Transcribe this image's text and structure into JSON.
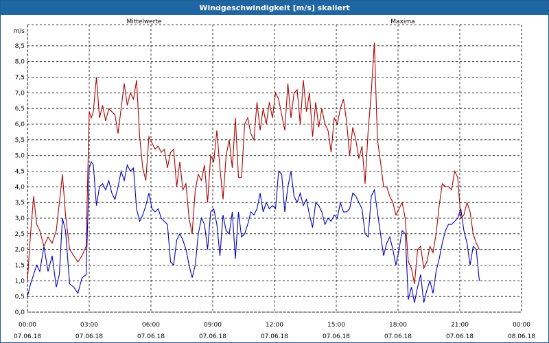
{
  "window": {
    "title": "Windgeschwindigkeit [m/s] skaliert"
  },
  "chart_data": {
    "type": "line",
    "ylabel": "m/s",
    "ylim": [
      0,
      9
    ],
    "y_ticks": [
      "0,0",
      "0,5",
      "1,0",
      "1,5",
      "2,0",
      "2,5",
      "3,0",
      "3,5",
      "4,0",
      "4,5",
      "5,0",
      "5,5",
      "6,0",
      "6,5",
      "7,0",
      "7,5",
      "8,0",
      "8,5"
    ],
    "x_ticks": [
      {
        "time": "00:00",
        "date": "07.06.18"
      },
      {
        "time": "03:00",
        "date": "07.06.18"
      },
      {
        "time": "06:00",
        "date": "07.06.18"
      },
      {
        "time": "09:00",
        "date": "07.06.18"
      },
      {
        "time": "12:00",
        "date": "07.06.18"
      },
      {
        "time": "15:00",
        "date": "07.06.18"
      },
      {
        "time": "18:00",
        "date": "07.06.18"
      },
      {
        "time": "21:00",
        "date": "07.06.18"
      },
      {
        "time": "00:00",
        "date": "08.06.18"
      }
    ],
    "x_range_hours": [
      0,
      24
    ],
    "grid": true,
    "series": [
      {
        "name": "Mittelwerte",
        "color": "#0000c0",
        "legend_position": "top-left",
        "points": [
          [
            0,
            0.5
          ],
          [
            0.15,
            0.9
          ],
          [
            0.3,
            1.2
          ],
          [
            0.45,
            1.5
          ],
          [
            0.6,
            1.3
          ],
          [
            0.8,
            2.1
          ],
          [
            1.0,
            1.3
          ],
          [
            1.2,
            1.8
          ],
          [
            1.4,
            0.8
          ],
          [
            1.55,
            1.2
          ],
          [
            1.7,
            3.0
          ],
          [
            1.85,
            2.6
          ],
          [
            2.05,
            0.9
          ],
          [
            2.25,
            0.8
          ],
          [
            2.45,
            0.6
          ],
          [
            2.65,
            1.1
          ],
          [
            2.85,
            1.2
          ],
          [
            3.0,
            4.6
          ],
          [
            3.1,
            4.8
          ],
          [
            3.2,
            4.7
          ],
          [
            3.35,
            3.4
          ],
          [
            3.5,
            4.0
          ],
          [
            3.65,
            4.1
          ],
          [
            3.8,
            3.9
          ],
          [
            3.95,
            4.2
          ],
          [
            4.1,
            3.8
          ],
          [
            4.25,
            3.6
          ],
          [
            4.4,
            4.0
          ],
          [
            4.55,
            4.5
          ],
          [
            4.7,
            4.2
          ],
          [
            4.85,
            4.7
          ],
          [
            5.0,
            4.5
          ],
          [
            5.15,
            4.6
          ],
          [
            5.3,
            3.3
          ],
          [
            5.45,
            2.9
          ],
          [
            5.6,
            3.1
          ],
          [
            5.75,
            3.4
          ],
          [
            5.9,
            3.8
          ],
          [
            6.05,
            3.3
          ],
          [
            6.2,
            3.2
          ],
          [
            6.35,
            3.3
          ],
          [
            6.5,
            3.0
          ],
          [
            6.65,
            2.9
          ],
          [
            6.8,
            2.8
          ],
          [
            6.95,
            1.6
          ],
          [
            7.1,
            1.5
          ],
          [
            7.25,
            2.3
          ],
          [
            7.4,
            2.5
          ],
          [
            7.55,
            2.3
          ],
          [
            7.7,
            2.0
          ],
          [
            7.85,
            1.5
          ],
          [
            8.0,
            1.1
          ],
          [
            8.15,
            1.5
          ],
          [
            8.3,
            2.5
          ],
          [
            8.45,
            3.0
          ],
          [
            8.6,
            2.8
          ],
          [
            8.75,
            2.0
          ],
          [
            8.9,
            3.2
          ],
          [
            9.05,
            3.3
          ],
          [
            9.2,
            2.8
          ],
          [
            9.35,
            1.8
          ],
          [
            9.5,
            3.1
          ],
          [
            9.65,
            2.6
          ],
          [
            9.8,
            2.5
          ],
          [
            9.95,
            3.2
          ],
          [
            10.1,
            1.7
          ],
          [
            10.25,
            3.2
          ],
          [
            10.4,
            2.4
          ],
          [
            10.55,
            2.5
          ],
          [
            10.7,
            2.8
          ],
          [
            10.85,
            3.2
          ],
          [
            11.0,
            3.1
          ],
          [
            11.15,
            3.3
          ],
          [
            11.3,
            3.8
          ],
          [
            11.45,
            3.2
          ],
          [
            11.6,
            3.5
          ],
          [
            11.75,
            3.3
          ],
          [
            11.9,
            3.4
          ],
          [
            12.05,
            3.3
          ],
          [
            12.2,
            4.5
          ],
          [
            12.35,
            4.4
          ],
          [
            12.5,
            3.2
          ],
          [
            12.65,
            4.0
          ],
          [
            12.8,
            4.5
          ],
          [
            12.95,
            3.7
          ],
          [
            13.1,
            3.5
          ],
          [
            13.25,
            3.8
          ],
          [
            13.4,
            3.4
          ],
          [
            13.55,
            3.6
          ],
          [
            13.7,
            3.1
          ],
          [
            13.85,
            2.7
          ],
          [
            14.0,
            3.5
          ],
          [
            14.15,
            3.4
          ],
          [
            14.3,
            3.2
          ],
          [
            14.45,
            2.8
          ],
          [
            14.6,
            3.0
          ],
          [
            14.75,
            2.9
          ],
          [
            14.9,
            3.1
          ],
          [
            15.05,
            3.0
          ],
          [
            15.2,
            3.5
          ],
          [
            15.35,
            3.2
          ],
          [
            15.5,
            3.2
          ],
          [
            15.65,
            3.3
          ],
          [
            15.8,
            3.8
          ],
          [
            15.95,
            3.7
          ],
          [
            16.1,
            3.5
          ],
          [
            16.25,
            3.3
          ],
          [
            16.4,
            2.5
          ],
          [
            16.55,
            2.4
          ],
          [
            16.7,
            3.7
          ],
          [
            16.85,
            3.9
          ],
          [
            17.0,
            3.2
          ],
          [
            17.15,
            2.5
          ],
          [
            17.3,
            1.8
          ],
          [
            17.45,
            2.2
          ],
          [
            17.6,
            2.4
          ],
          [
            17.75,
            2.0
          ],
          [
            17.9,
            1.5
          ],
          [
            18.05,
            2.0
          ],
          [
            18.2,
            2.6
          ],
          [
            18.35,
            2.5
          ],
          [
            18.5,
            0.4
          ],
          [
            18.65,
            0.8
          ],
          [
            18.8,
            0.3
          ],
          [
            18.95,
            0.8
          ],
          [
            19.1,
            1.2
          ],
          [
            19.25,
            0.3
          ],
          [
            19.4,
            0.7
          ],
          [
            19.55,
            1.0
          ],
          [
            19.7,
            0.6
          ],
          [
            19.85,
            1.3
          ],
          [
            20.0,
            1.7
          ],
          [
            20.15,
            2.2
          ],
          [
            20.3,
            2.6
          ],
          [
            20.45,
            2.8
          ],
          [
            20.6,
            2.8
          ],
          [
            20.75,
            2.9
          ],
          [
            20.9,
            3.0
          ],
          [
            21.05,
            3.3
          ],
          [
            21.2,
            2.6
          ],
          [
            21.35,
            2.2
          ],
          [
            21.5,
            1.5
          ],
          [
            21.65,
            2.1
          ],
          [
            21.8,
            2.0
          ],
          [
            21.95,
            1.0
          ]
        ]
      },
      {
        "name": "Maxima",
        "color": "#b00000",
        "legend_position": "top-right",
        "points": [
          [
            0,
            1.0
          ],
          [
            0.15,
            2.5
          ],
          [
            0.3,
            3.7
          ],
          [
            0.45,
            2.8
          ],
          [
            0.6,
            2.6
          ],
          [
            0.8,
            2.1
          ],
          [
            1.0,
            2.4
          ],
          [
            1.2,
            2.2
          ],
          [
            1.4,
            2.6
          ],
          [
            1.55,
            3.5
          ],
          [
            1.7,
            4.4
          ],
          [
            1.85,
            3.1
          ],
          [
            2.05,
            2.0
          ],
          [
            2.25,
            1.8
          ],
          [
            2.45,
            1.6
          ],
          [
            2.65,
            1.8
          ],
          [
            2.85,
            2.1
          ],
          [
            3.0,
            6.4
          ],
          [
            3.1,
            6.2
          ],
          [
            3.2,
            6.4
          ],
          [
            3.35,
            7.5
          ],
          [
            3.5,
            6.2
          ],
          [
            3.65,
            6.6
          ],
          [
            3.8,
            6.1
          ],
          [
            3.95,
            6.5
          ],
          [
            4.1,
            6.4
          ],
          [
            4.25,
            6.3
          ],
          [
            4.4,
            5.7
          ],
          [
            4.55,
            6.5
          ],
          [
            4.7,
            7.3
          ],
          [
            4.85,
            6.6
          ],
          [
            5.0,
            7.0
          ],
          [
            5.15,
            6.8
          ],
          [
            5.3,
            7.4
          ],
          [
            5.45,
            5.6
          ],
          [
            5.6,
            4.6
          ],
          [
            5.75,
            4.2
          ],
          [
            5.9,
            5.6
          ],
          [
            6.05,
            5.4
          ],
          [
            6.2,
            5.2
          ],
          [
            6.35,
            5.3
          ],
          [
            6.5,
            5.1
          ],
          [
            6.65,
            5.2
          ],
          [
            6.8,
            4.6
          ],
          [
            6.95,
            5.1
          ],
          [
            7.1,
            5.2
          ],
          [
            7.25,
            4.0
          ],
          [
            7.4,
            4.8
          ],
          [
            7.55,
            3.9
          ],
          [
            7.7,
            4.1
          ],
          [
            7.85,
            3.0
          ],
          [
            8.0,
            2.5
          ],
          [
            8.15,
            3.9
          ],
          [
            8.3,
            4.4
          ],
          [
            8.45,
            4.2
          ],
          [
            8.6,
            4.7
          ],
          [
            8.75,
            3.5
          ],
          [
            8.9,
            5.0
          ],
          [
            9.05,
            4.8
          ],
          [
            9.2,
            5.8
          ],
          [
            9.35,
            4.6
          ],
          [
            9.5,
            3.6
          ],
          [
            9.65,
            5.0
          ],
          [
            9.8,
            5.5
          ],
          [
            9.95,
            4.6
          ],
          [
            10.1,
            6.2
          ],
          [
            10.25,
            4.3
          ],
          [
            10.4,
            4.3
          ],
          [
            10.55,
            6.0
          ],
          [
            10.7,
            6.2
          ],
          [
            10.85,
            5.7
          ],
          [
            11.0,
            5.5
          ],
          [
            11.15,
            6.7
          ],
          [
            11.3,
            5.8
          ],
          [
            11.45,
            6.5
          ],
          [
            11.6,
            6.0
          ],
          [
            11.75,
            6.7
          ],
          [
            11.9,
            6.2
          ],
          [
            12.05,
            7.0
          ],
          [
            12.2,
            6.8
          ],
          [
            12.35,
            6.3
          ],
          [
            12.5,
            5.8
          ],
          [
            12.65,
            7.3
          ],
          [
            12.8,
            6.2
          ],
          [
            12.95,
            7.0
          ],
          [
            13.1,
            7.1
          ],
          [
            13.25,
            6.0
          ],
          [
            13.4,
            7.4
          ],
          [
            13.55,
            6.4
          ],
          [
            13.7,
            7.0
          ],
          [
            13.85,
            5.6
          ],
          [
            14.0,
            6.7
          ],
          [
            14.15,
            5.9
          ],
          [
            14.3,
            6.5
          ],
          [
            14.45,
            6.0
          ],
          [
            14.6,
            5.8
          ],
          [
            14.75,
            5.1
          ],
          [
            14.9,
            6.2
          ],
          [
            15.05,
            6.0
          ],
          [
            15.2,
            6.5
          ],
          [
            15.35,
            6.8
          ],
          [
            15.5,
            6.1
          ],
          [
            15.65,
            5.0
          ],
          [
            15.8,
            5.9
          ],
          [
            15.95,
            5.5
          ],
          [
            16.1,
            4.9
          ],
          [
            16.25,
            5.3
          ],
          [
            16.4,
            4.1
          ],
          [
            16.55,
            5.8
          ],
          [
            16.7,
            7.0
          ],
          [
            16.85,
            8.6
          ],
          [
            17.0,
            5.5
          ],
          [
            17.15,
            4.8
          ],
          [
            17.3,
            4.0
          ],
          [
            17.45,
            4.0
          ],
          [
            17.6,
            3.7
          ],
          [
            17.75,
            3.5
          ],
          [
            17.9,
            3.1
          ],
          [
            18.05,
            3.3
          ],
          [
            18.2,
            3.5
          ],
          [
            18.35,
            3.0
          ],
          [
            18.5,
            1.6
          ],
          [
            18.65,
            1.4
          ],
          [
            18.8,
            0.9
          ],
          [
            18.95,
            2.0
          ],
          [
            19.1,
            2.1
          ],
          [
            19.25,
            1.4
          ],
          [
            19.4,
            1.6
          ],
          [
            19.55,
            2.1
          ],
          [
            19.7,
            1.9
          ],
          [
            19.85,
            2.5
          ],
          [
            20.0,
            3.4
          ],
          [
            20.15,
            4.1
          ],
          [
            20.3,
            4.0
          ],
          [
            20.45,
            4.0
          ],
          [
            20.6,
            3.9
          ],
          [
            20.75,
            4.5
          ],
          [
            20.9,
            4.3
          ],
          [
            21.05,
            3.0
          ],
          [
            21.2,
            3.1
          ],
          [
            21.35,
            3.5
          ],
          [
            21.5,
            3.2
          ],
          [
            21.65,
            2.5
          ],
          [
            21.8,
            2.2
          ],
          [
            21.95,
            2.0
          ]
        ]
      }
    ]
  }
}
